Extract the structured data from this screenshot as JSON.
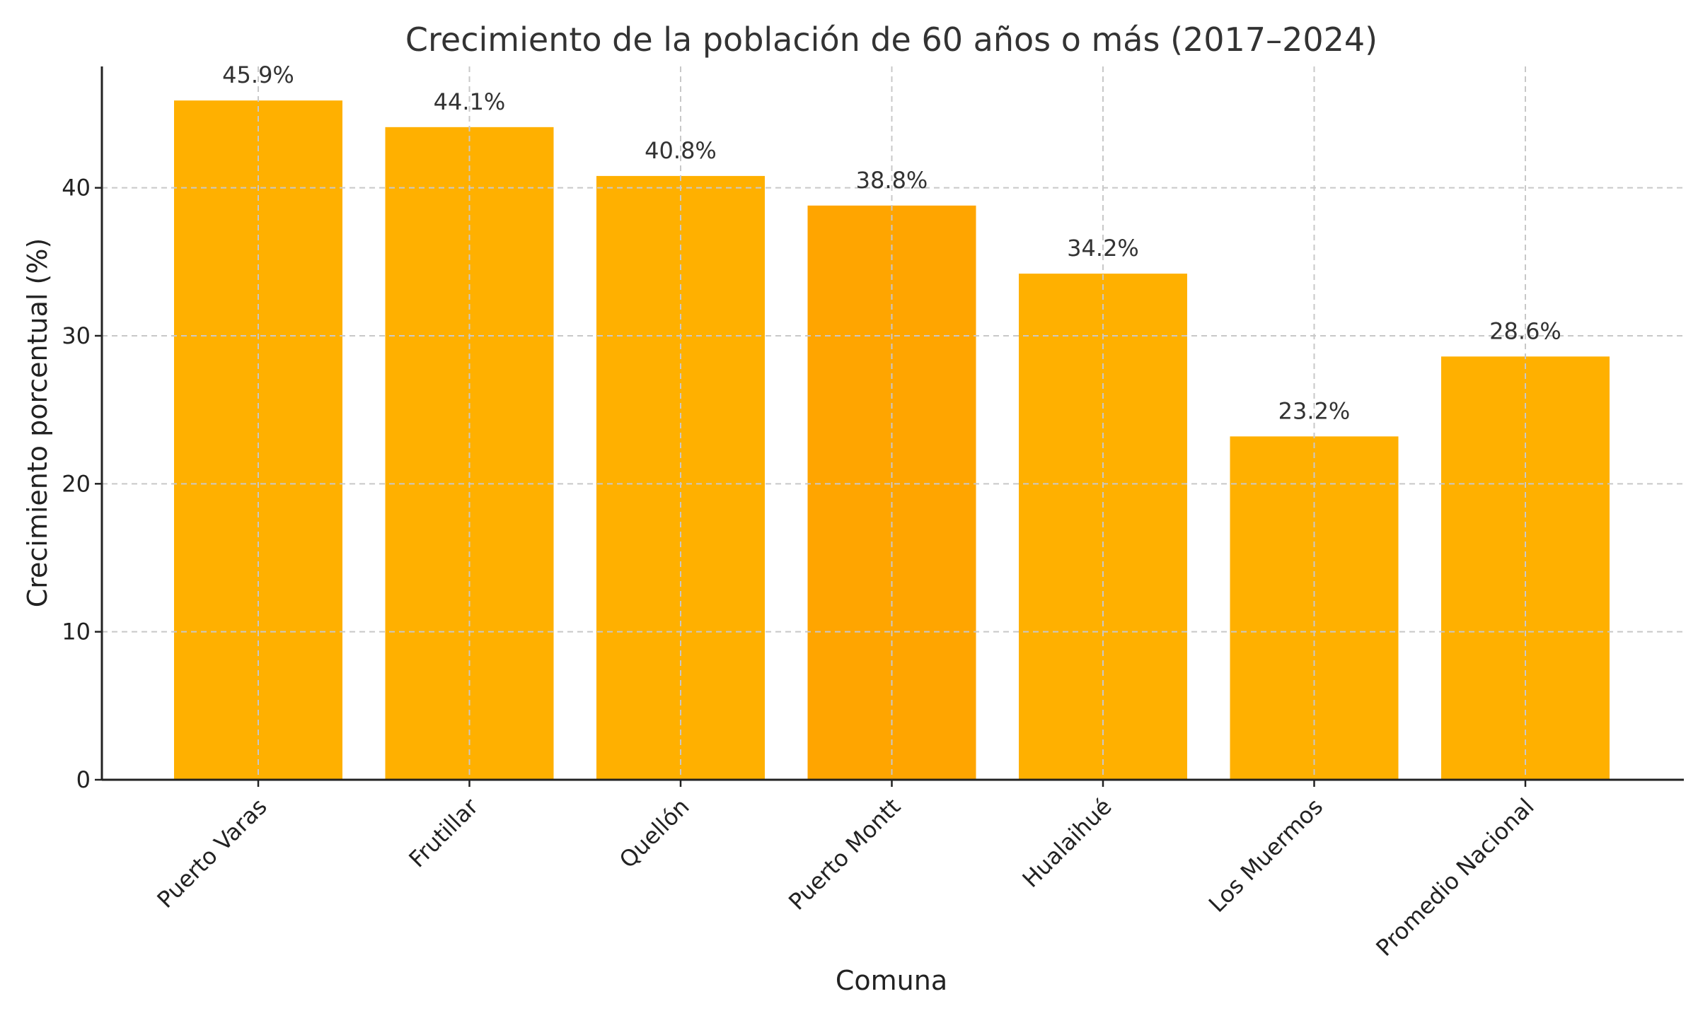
{
  "chart_data": {
    "type": "bar",
    "title": "Crecimiento de la población de 60 años o más (2017–2024)",
    "xlabel": "Comuna",
    "ylabel": "Crecimiento porcentual (%)",
    "categories": [
      "Puerto Varas",
      "Frutillar",
      "Quellón",
      "Puerto Montt",
      "Hualaihué",
      "Los Muermos",
      "Promedio Nacional"
    ],
    "values": [
      45.9,
      44.1,
      40.8,
      38.8,
      34.2,
      23.2,
      28.6
    ],
    "data_labels": [
      "45.9%",
      "44.1%",
      "40.8%",
      "38.8%",
      "34.2%",
      "23.2%",
      "28.6%"
    ],
    "ylim": [
      0,
      48.2
    ],
    "yticks": [
      0,
      10,
      20,
      30,
      40
    ],
    "grid": true,
    "colors": {
      "bar": "#FFB000",
      "highlight_bar": "#FFA500",
      "highlight_category": "Puerto Montt",
      "grid": "#c8c8c8",
      "axis": "#222222"
    }
  }
}
